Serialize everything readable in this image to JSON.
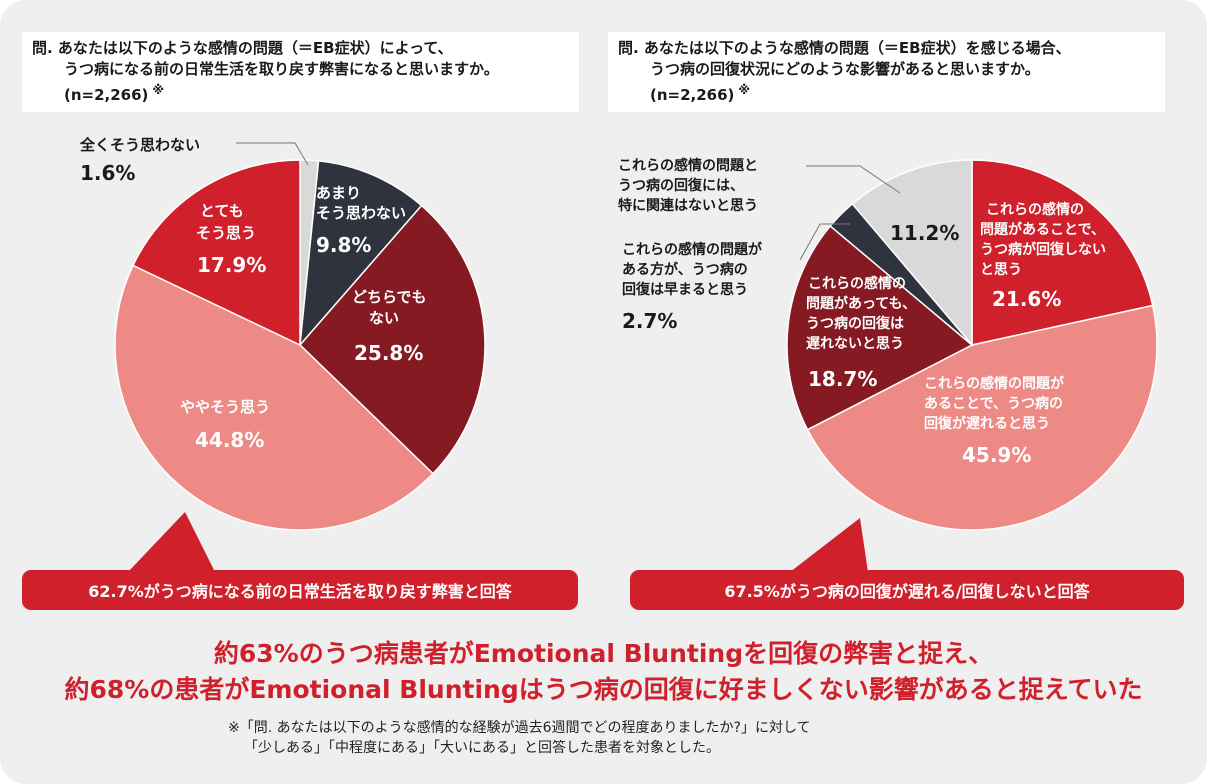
{
  "left_question": {
    "line1": "問. あなたは以下のような感情の問題（＝EB症状）によって、",
    "line2": "うつ病になる前の日常生活を取り戻す弊害になると思いますか。",
    "line3": "(n=2,266)",
    "mark": "※"
  },
  "right_question": {
    "line1": "問. あなたは以下のような感情の問題（＝EB症状）を感じる場合、",
    "line2": "うつ病の回復状況にどのような影響があると思いますか。",
    "line3": "(n=2,266)",
    "mark": "※"
  },
  "chart_data": [
    {
      "type": "pie",
      "slices": [
        {
          "label": "全くそう思わない",
          "value": 1.6,
          "display": "1.6%",
          "color": "#d9d9d9"
        },
        {
          "label": "あまりそう思わない",
          "value": 9.8,
          "display": "9.8%",
          "color": "#2f333e"
        },
        {
          "label": "どちらでもない",
          "value": 25.8,
          "display": "25.8%",
          "color": "#861a22"
        },
        {
          "label": "ややそう思う",
          "value": 44.8,
          "display": "44.8%",
          "color": "#ed8a85"
        },
        {
          "label": "とてもそう思う",
          "value": 17.9,
          "display": "17.9%",
          "color": "#d0202b"
        }
      ]
    },
    {
      "type": "pie",
      "slices": [
        {
          "label": "これらの感情の問題があることで、うつ病が回復しないと思う",
          "value": 21.6,
          "display": "21.6%",
          "color": "#d0202b"
        },
        {
          "label": "これらの感情の問題があることで、うつ病の回復が遅れると思う",
          "value": 45.9,
          "display": "45.9%",
          "color": "#ed8a85"
        },
        {
          "label": "これらの感情の問題があっても、うつ病の回復は遅れないと思う",
          "value": 18.7,
          "display": "18.7%",
          "color": "#861a22"
        },
        {
          "label": "これらの感情の問題がある方が、うつ病の回復は早まると思う",
          "value": 2.7,
          "display": "2.7%",
          "color": "#2f333e"
        },
        {
          "label": "これらの感情の問題とうつ病の回復には、特に関連はないと思う",
          "value": 11.2,
          "display": "11.2%",
          "color": "#d9d9d9"
        }
      ]
    }
  ],
  "left_labels": {
    "zenku_1": "全くそう思わない",
    "zenku_val": "1.6%",
    "amari_1": "あまり",
    "amari_2": "そう思わない",
    "amari_val": "9.8%",
    "dochira_1": "どちらでも",
    "dochira_2": "ない",
    "dochira_val": "25.8%",
    "yaya_1": "ややそう思う",
    "yaya_val": "44.8%",
    "totemo_1": "とても",
    "totemo_2": "そう思う",
    "totemo_val": "17.9%"
  },
  "right_labels": {
    "kanren_1": "これらの感情の問題と",
    "kanren_2": "うつ病の回復には、",
    "kanren_3": "特に関連はないと思う",
    "kanren_val": "11.2%",
    "hayamaru_1": "これらの感情の問題が",
    "hayamaru_2": "ある方が、うつ病の",
    "hayamaru_3": "回復は早まると思う",
    "hayamaru_val": "2.7%",
    "kaifuku_1": "これらの感情の",
    "kaifuku_2": "問題があることで、",
    "kaifuku_3": "うつ病が回復しない",
    "kaifuku_4": "と思う",
    "kaifuku_val": "21.6%",
    "okurenai_1": "これらの感情の",
    "okurenai_2": "問題があっても、",
    "okurenai_3": "うつ病の回復は",
    "okurenai_4": "遅れないと思う",
    "okurenai_val": "18.7%",
    "okureru_1": "これらの感情の問題が",
    "okureru_2": "あることで、うつ病の",
    "okureru_3": "回復が遅れると思う",
    "okureru_val": "45.9%"
  },
  "banners": {
    "left": "62.7%がうつ病になる前の日常生活を取り戻す弊害と回答",
    "right": "67.5%がうつ病の回復が遅れる/回復しないと回答"
  },
  "headline": {
    "line1": "約63%のうつ病患者がEmotional Bluntingを回復の弊害と捉え、",
    "line2": "約68%の患者がEmotional Bluntingはうつ病の回復に好ましくない影響があると捉えていた"
  },
  "footnote": {
    "line1": "※「問. あなたは以下のような感情的な経験が過去6週間でどの程度ありましたか?」に対して",
    "line2": "「少しある」「中程度にある」「大いにある」と回答した患者を対象とした。"
  },
  "colors": {
    "accent_red": "#d0202b",
    "dark_red": "#861a22",
    "pink": "#ed8a85",
    "charcoal": "#2f333e",
    "light_gray": "#d9d9d9"
  }
}
